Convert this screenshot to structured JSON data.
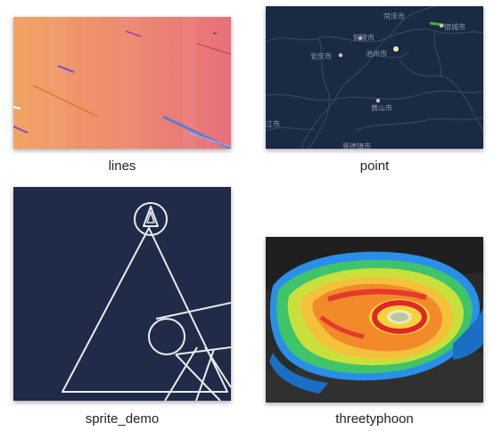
{
  "gallery": {
    "items": [
      {
        "label": "lines",
        "colors": {
          "from": "#f0a263",
          "to": "#e8717a"
        }
      },
      {
        "label": "point",
        "map_labels": [
          "菏泽市",
          "铜陵市",
          "宿城市",
          "安庆市",
          "池州市",
          "黄山市",
          "江市",
          "景德镇市"
        ],
        "colors": {
          "background": "#1b2a43",
          "border": "#3b4a63"
        }
      },
      {
        "label": "sprite_demo",
        "colors": {
          "background": "#1f2b47",
          "stroke": "#e8ecf4"
        }
      },
      {
        "label": "threetyphoon",
        "colors": {
          "background": "#2a2a2a"
        }
      }
    ]
  }
}
